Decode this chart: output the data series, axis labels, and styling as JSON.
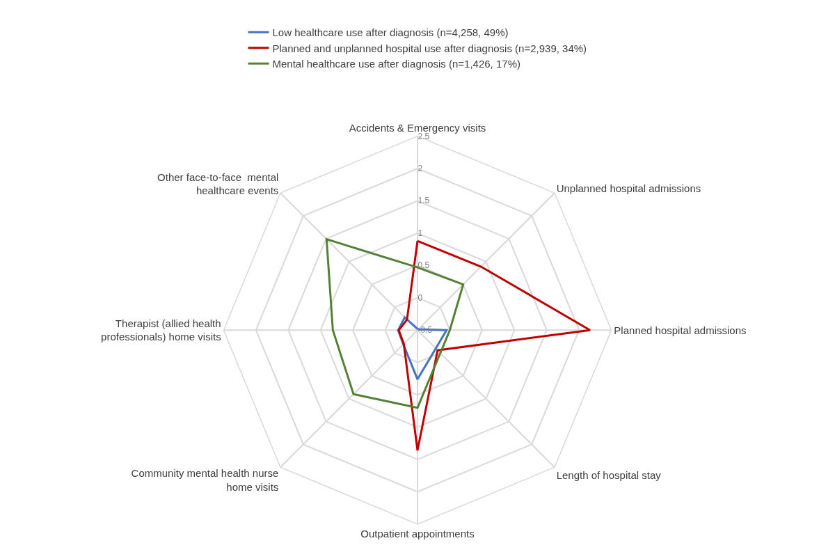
{
  "chart_data": {
    "type": "radar",
    "categories": [
      "Accidents & Emergency visits",
      "Unplanned hospital admissions",
      "Planned hospital admissions",
      "Length of hospital stay",
      "Outpatient appointments",
      "Community mental health nurse\nhome visits",
      "Therapist (allied health\nprofessionals) home visits",
      "Other face-to-face  mental\nhealthcare events"
    ],
    "series": [
      {
        "name": "Low healthcare use after diagnosis (n=4,258, 49%)",
        "color": "#4472c4",
        "values": [
          -0.48,
          -0.48,
          -0.05,
          -0.1,
          0.26,
          -0.19,
          -0.2,
          -0.22
        ]
      },
      {
        "name": "Planned and unplanned hospital use after diagnosis (n=2,939, 34%)",
        "color": "#c00000",
        "values": [
          0.88,
          0.89,
          2.17,
          -0.06,
          1.36,
          -0.2,
          -0.21,
          -0.27
        ]
      },
      {
        "name": "Mental healthcare use after diagnosis (n=1,426, 17%)",
        "color": "#548235",
        "values": [
          0.47,
          0.5,
          0.0,
          0.0,
          0.7,
          0.9,
          0.81,
          1.49
        ]
      }
    ],
    "ylim": [
      -0.5,
      2.5
    ],
    "yticks": [
      {
        "value": -0.5,
        "label": "-0.5"
      },
      0,
      0.5,
      1,
      1.5,
      2,
      2.5
    ],
    "grid": true,
    "legend": "top",
    "marker": "none",
    "line_style": "solid"
  }
}
